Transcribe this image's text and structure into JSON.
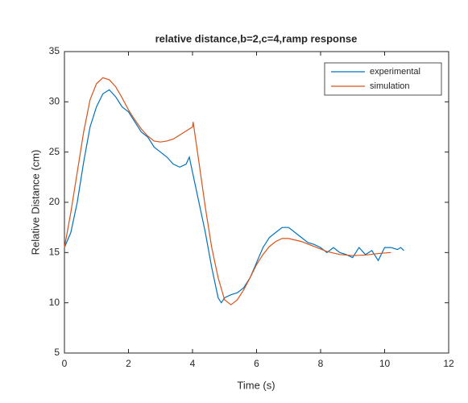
{
  "chart_data": {
    "type": "line",
    "title": "relative distance,b=2,c=4,ramp response",
    "xlabel": "Time (s)",
    "ylabel": "Relative Distance (cm)",
    "xlim": [
      0,
      12
    ],
    "xticks": [
      0,
      2,
      4,
      6,
      8,
      10,
      12
    ],
    "ylim": [
      5,
      35
    ],
    "yticks": [
      5,
      10,
      15,
      20,
      25,
      30,
      35
    ],
    "legend": "upper right",
    "series": [
      {
        "name": "experimental",
        "color": "#0072BD",
        "x": [
          0,
          0.2,
          0.4,
          0.6,
          0.8,
          1.0,
          1.2,
          1.4,
          1.6,
          1.8,
          2.0,
          2.2,
          2.4,
          2.6,
          2.8,
          3.0,
          3.2,
          3.4,
          3.6,
          3.8,
          3.9,
          4.0,
          4.2,
          4.4,
          4.6,
          4.8,
          4.9,
          5.0,
          5.2,
          5.4,
          5.6,
          5.8,
          6.0,
          6.2,
          6.4,
          6.6,
          6.8,
          7.0,
          7.2,
          7.4,
          7.6,
          7.8,
          8.0,
          8.2,
          8.4,
          8.6,
          8.8,
          9.0,
          9.2,
          9.4,
          9.6,
          9.8,
          10.0,
          10.2,
          10.4,
          10.5,
          10.6
        ],
        "values": [
          15.5,
          17,
          20,
          24,
          27.5,
          29.5,
          30.8,
          31.2,
          30.5,
          29.5,
          29,
          28,
          27,
          26.5,
          25.5,
          25,
          24.5,
          23.8,
          23.5,
          23.8,
          24.5,
          23,
          20,
          17,
          13.5,
          10.5,
          10,
          10.5,
          10.8,
          11,
          11.5,
          12.5,
          14,
          15.5,
          16.5,
          17,
          17.5,
          17.5,
          17,
          16.5,
          16,
          15.8,
          15.5,
          15,
          15.5,
          15,
          14.8,
          14.5,
          15.5,
          14.8,
          15.2,
          14.2,
          15.5,
          15.5,
          15.3,
          15.5,
          15.2
        ]
      },
      {
        "name": "simulation",
        "color": "#D95319",
        "x": [
          0,
          0.2,
          0.4,
          0.6,
          0.8,
          1.0,
          1.2,
          1.4,
          1.6,
          1.8,
          2.0,
          2.2,
          2.4,
          2.6,
          2.8,
          3.0,
          3.2,
          3.4,
          3.6,
          3.8,
          4.0,
          4.02,
          4.2,
          4.4,
          4.6,
          4.8,
          5.0,
          5.2,
          5.4,
          5.6,
          5.8,
          6.0,
          6.2,
          6.4,
          6.6,
          6.8,
          7.0,
          7.4,
          7.8,
          8.2,
          8.6,
          9.0,
          9.4,
          9.8,
          10.2
        ],
        "values": [
          15.5,
          19,
          23,
          27,
          30.2,
          31.8,
          32.4,
          32.2,
          31.5,
          30.4,
          29.2,
          28.2,
          27.3,
          26.6,
          26.1,
          26,
          26.1,
          26.3,
          26.7,
          27.1,
          27.5,
          28,
          24,
          19.5,
          15.5,
          12.5,
          10.3,
          9.8,
          10.3,
          11.3,
          12.5,
          13.8,
          14.8,
          15.6,
          16.1,
          16.4,
          16.4,
          16.1,
          15.6,
          15.1,
          14.8,
          14.7,
          14.75,
          14.9,
          15.0
        ]
      }
    ]
  }
}
